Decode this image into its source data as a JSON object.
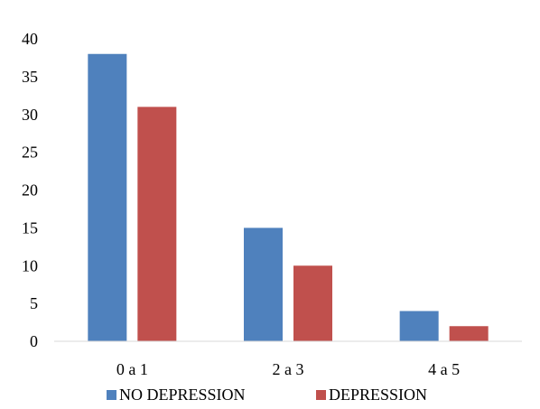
{
  "chart_data": {
    "type": "bar",
    "categories": [
      "0 a 1",
      "2 a 3",
      "4 a 5"
    ],
    "series": [
      {
        "name": "NO DEPRESSION",
        "values": [
          38,
          15,
          4
        ],
        "color": "#4f81bd"
      },
      {
        "name": "DEPRESSION",
        "values": [
          31,
          10,
          2
        ],
        "color": "#c0504d"
      }
    ],
    "ylim": [
      0,
      40
    ],
    "yticks": [
      "0",
      "5",
      "10",
      "15",
      "20",
      "25",
      "30",
      "35",
      "40"
    ],
    "grid": false,
    "legend_position": "bottom",
    "title": "",
    "xlabel": "",
    "ylabel": ""
  }
}
